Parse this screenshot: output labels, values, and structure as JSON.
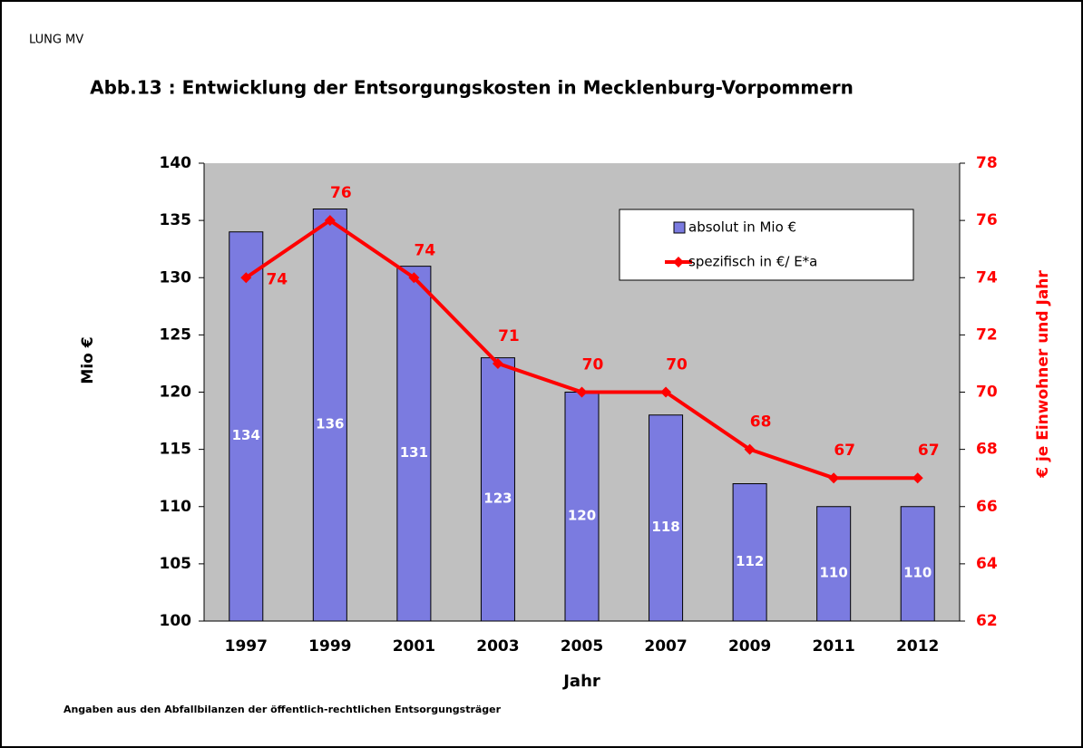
{
  "source": "LUNG MV",
  "footnote": "Angaben aus den Abfallbilanzen der öffentlich-rechtlichen Entsorgungsträger",
  "chart_data": {
    "type": "bar",
    "title": "Abb.13 : Entwicklung der Entsorgungskosten in Mecklenburg-Vorpommern",
    "x_label": "Jahr",
    "y_label": "Mio €",
    "y2_label": "€ je Einwohner und Jahr",
    "categories": [
      "1997",
      "1999",
      "2001",
      "2003",
      "2005",
      "2007",
      "2009",
      "2011",
      "2012"
    ],
    "series": [
      {
        "name": "absolut in Mio €",
        "type": "bar",
        "color": "#7b7be0",
        "values": [
          134,
          136,
          131,
          123,
          120,
          118,
          112,
          110,
          110
        ]
      },
      {
        "name": "spezifisch  in €/ E*a",
        "type": "line",
        "color": "#ff0000",
        "axis": "y2",
        "values": [
          74,
          76,
          74,
          71,
          70,
          70,
          68,
          67,
          67
        ]
      }
    ],
    "ylim": [
      100,
      140
    ],
    "yticks": [
      100,
      105,
      110,
      115,
      120,
      125,
      130,
      135,
      140
    ],
    "y2lim": [
      62,
      78
    ],
    "y2ticks": [
      62,
      64,
      66,
      68,
      70,
      72,
      74,
      76,
      78
    ],
    "legend": "upper right"
  }
}
